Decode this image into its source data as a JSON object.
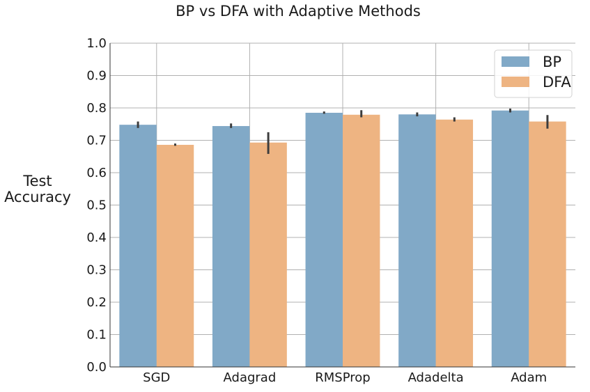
{
  "chart_data": {
    "type": "bar",
    "title": "BP vs DFA with Adaptive Methods",
    "xlabel": "",
    "ylabel": [
      "Test",
      "Accuracy"
    ],
    "ylim": [
      0,
      1.0
    ],
    "yticks": [
      "0.0",
      "0.1",
      "0.2",
      "0.3",
      "0.4",
      "0.5",
      "0.6",
      "0.7",
      "0.8",
      "0.9",
      "1.0"
    ],
    "grid": true,
    "legend_position": "top-right",
    "categories": [
      "SGD",
      "Adagrad",
      "RMSProp",
      "Adadelta",
      "Adam"
    ],
    "series": [
      {
        "name": "BP",
        "color": "#81a9c7",
        "values": [
          0.748,
          0.744,
          0.785,
          0.78,
          0.792
        ],
        "err_low": [
          0.738,
          0.738,
          0.782,
          0.774,
          0.786
        ],
        "err_high": [
          0.758,
          0.752,
          0.789,
          0.786,
          0.798
        ]
      },
      {
        "name": "DFA",
        "color": "#eeb482",
        "values": [
          0.686,
          0.693,
          0.779,
          0.764,
          0.758
        ],
        "err_low": [
          0.683,
          0.658,
          0.771,
          0.758,
          0.736
        ],
        "err_high": [
          0.69,
          0.725,
          0.793,
          0.771,
          0.778
        ]
      }
    ]
  }
}
